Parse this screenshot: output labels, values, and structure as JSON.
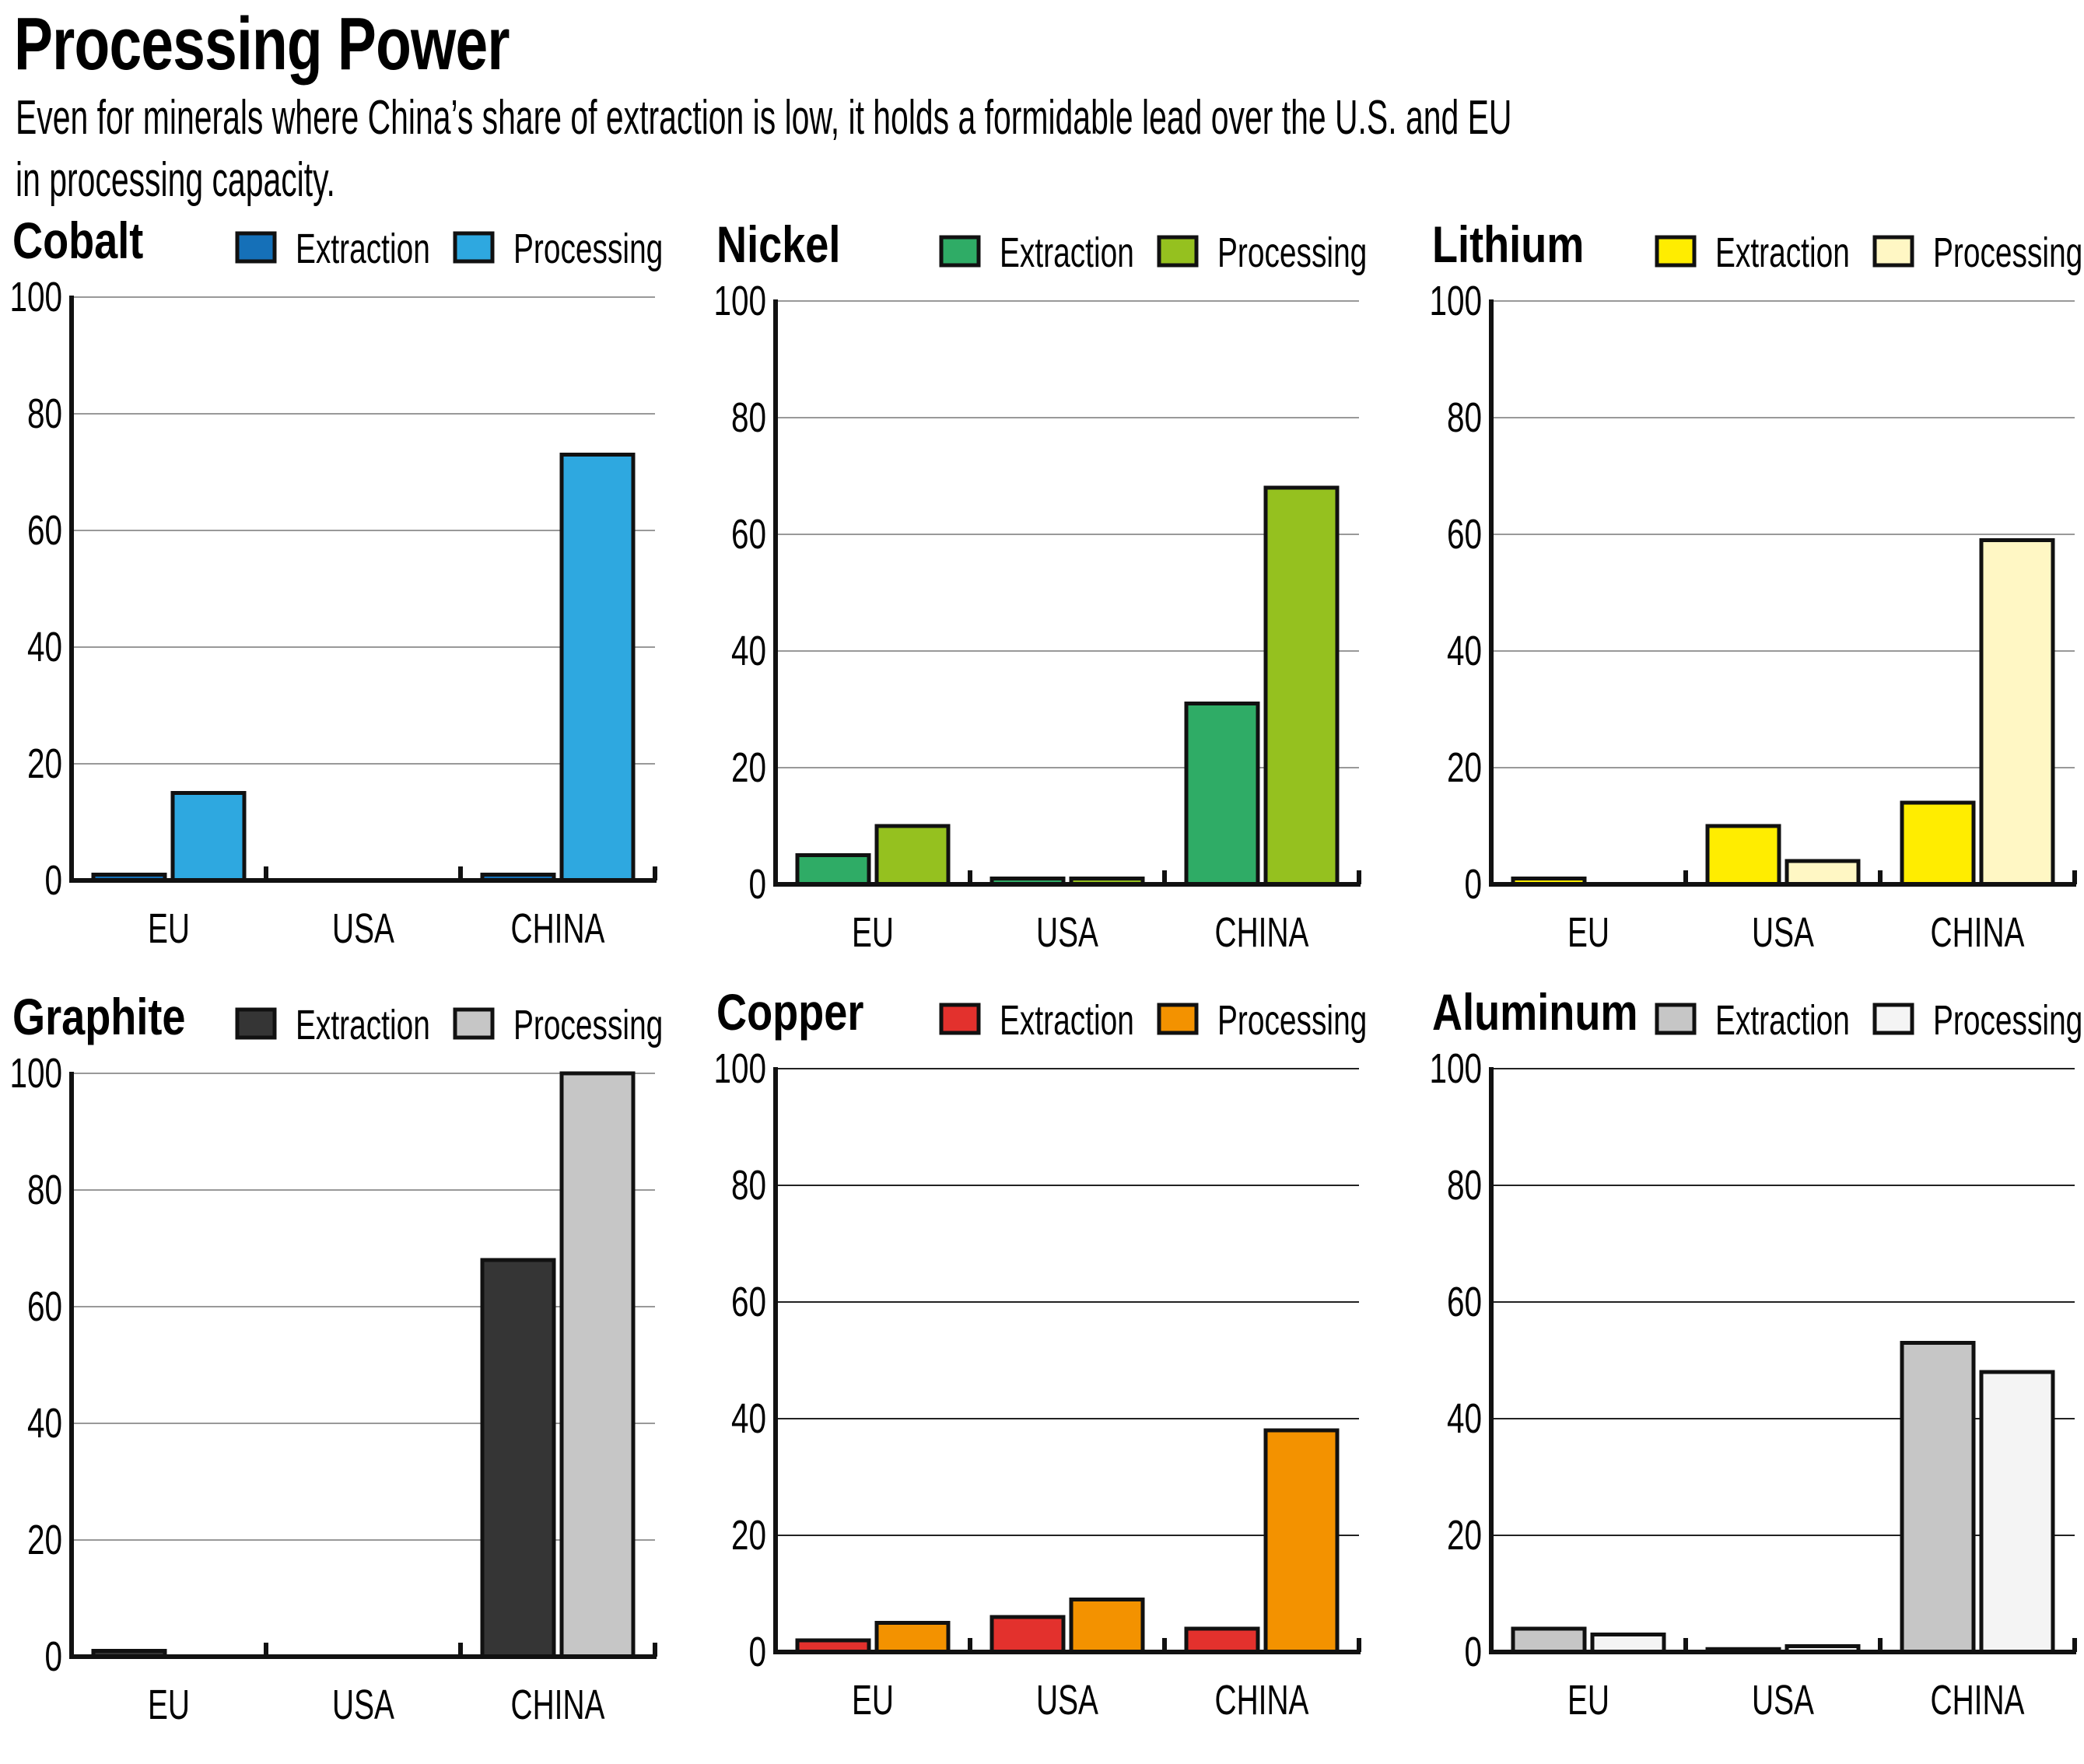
{
  "header": {
    "title": "Processing Power",
    "subtitle_line1": "Even for minerals where China’s share of extraction is low, it holds a formidable lead over the U.S. and EU",
    "subtitle_line2": "in processing capacity."
  },
  "chart_data": [
    {
      "type": "bar",
      "title": "Cobalt",
      "categories": [
        "EU",
        "USA",
        "CHINA"
      ],
      "series": [
        {
          "name": "Extraction",
          "color": "#1570b8",
          "values": [
            1,
            0,
            1
          ]
        },
        {
          "name": "Processing",
          "color": "#2ea8e0",
          "values": [
            15,
            0,
            73
          ]
        }
      ],
      "ylim": [
        0,
        100
      ],
      "yticks": [
        0,
        20,
        40,
        60,
        80,
        100
      ],
      "grid": true,
      "gridColor": "#999999",
      "legend": "top-right",
      "xlabel": "",
      "ylabel": ""
    },
    {
      "type": "bar",
      "title": "Nickel",
      "categories": [
        "EU",
        "USA",
        "CHINA"
      ],
      "series": [
        {
          "name": "Extraction",
          "color": "#2fac66",
          "values": [
            5,
            1,
            31
          ]
        },
        {
          "name": "Processing",
          "color": "#95c11f",
          "values": [
            10,
            1,
            68
          ]
        }
      ],
      "ylim": [
        0,
        100
      ],
      "yticks": [
        0,
        20,
        40,
        60,
        80,
        100
      ],
      "grid": true,
      "gridColor": "#999999",
      "legend": "top-right",
      "xlabel": "",
      "ylabel": ""
    },
    {
      "type": "bar",
      "title": "Lithium",
      "categories": [
        "EU",
        "USA",
        "CHINA"
      ],
      "series": [
        {
          "name": "Extraction",
          "color": "#ffed00",
          "values": [
            1,
            10,
            14
          ]
        },
        {
          "name": "Processing",
          "color": "#fff7c4",
          "values": [
            0,
            4,
            59
          ]
        }
      ],
      "ylim": [
        0,
        100
      ],
      "yticks": [
        0,
        20,
        40,
        60,
        80,
        100
      ],
      "grid": true,
      "gridColor": "#999999",
      "legend": "top-right",
      "xlabel": "",
      "ylabel": ""
    },
    {
      "type": "bar",
      "title": "Graphite",
      "categories": [
        "EU",
        "USA",
        "CHINA"
      ],
      "series": [
        {
          "name": "Extraction",
          "color": "#353535",
          "values": [
            1,
            0,
            68
          ]
        },
        {
          "name": "Processing",
          "color": "#c6c6c6",
          "values": [
            0,
            0,
            100
          ]
        }
      ],
      "ylim": [
        0,
        100
      ],
      "yticks": [
        0,
        20,
        40,
        60,
        80,
        100
      ],
      "grid": true,
      "gridColor": "#999999",
      "legend": "top-right",
      "xlabel": "",
      "ylabel": ""
    },
    {
      "type": "bar",
      "title": "Copper",
      "categories": [
        "EU",
        "USA",
        "CHINA"
      ],
      "series": [
        {
          "name": "Extraction",
          "color": "#e3312d",
          "values": [
            2,
            6,
            4
          ]
        },
        {
          "name": "Processing",
          "color": "#f39200",
          "values": [
            5,
            9,
            38
          ]
        }
      ],
      "ylim": [
        0,
        100
      ],
      "yticks": [
        0,
        20,
        40,
        60,
        80,
        100
      ],
      "grid": true,
      "gridColor": "#222222",
      "legend": "top-right",
      "xlabel": "",
      "ylabel": ""
    },
    {
      "type": "bar",
      "title": "Aluminum",
      "categories": [
        "EU",
        "USA",
        "CHINA"
      ],
      "series": [
        {
          "name": "Extraction",
          "color": "#c6c6c6",
          "values": [
            4,
            0.5,
            53
          ]
        },
        {
          "name": "Processing",
          "color": "#f4f4f4",
          "values": [
            3,
            1,
            48
          ]
        }
      ],
      "ylim": [
        0,
        100
      ],
      "yticks": [
        0,
        20,
        40,
        60,
        80,
        100
      ],
      "grid": true,
      "gridColor": "#222222",
      "legend": "top-right",
      "xlabel": "",
      "ylabel": ""
    }
  ]
}
